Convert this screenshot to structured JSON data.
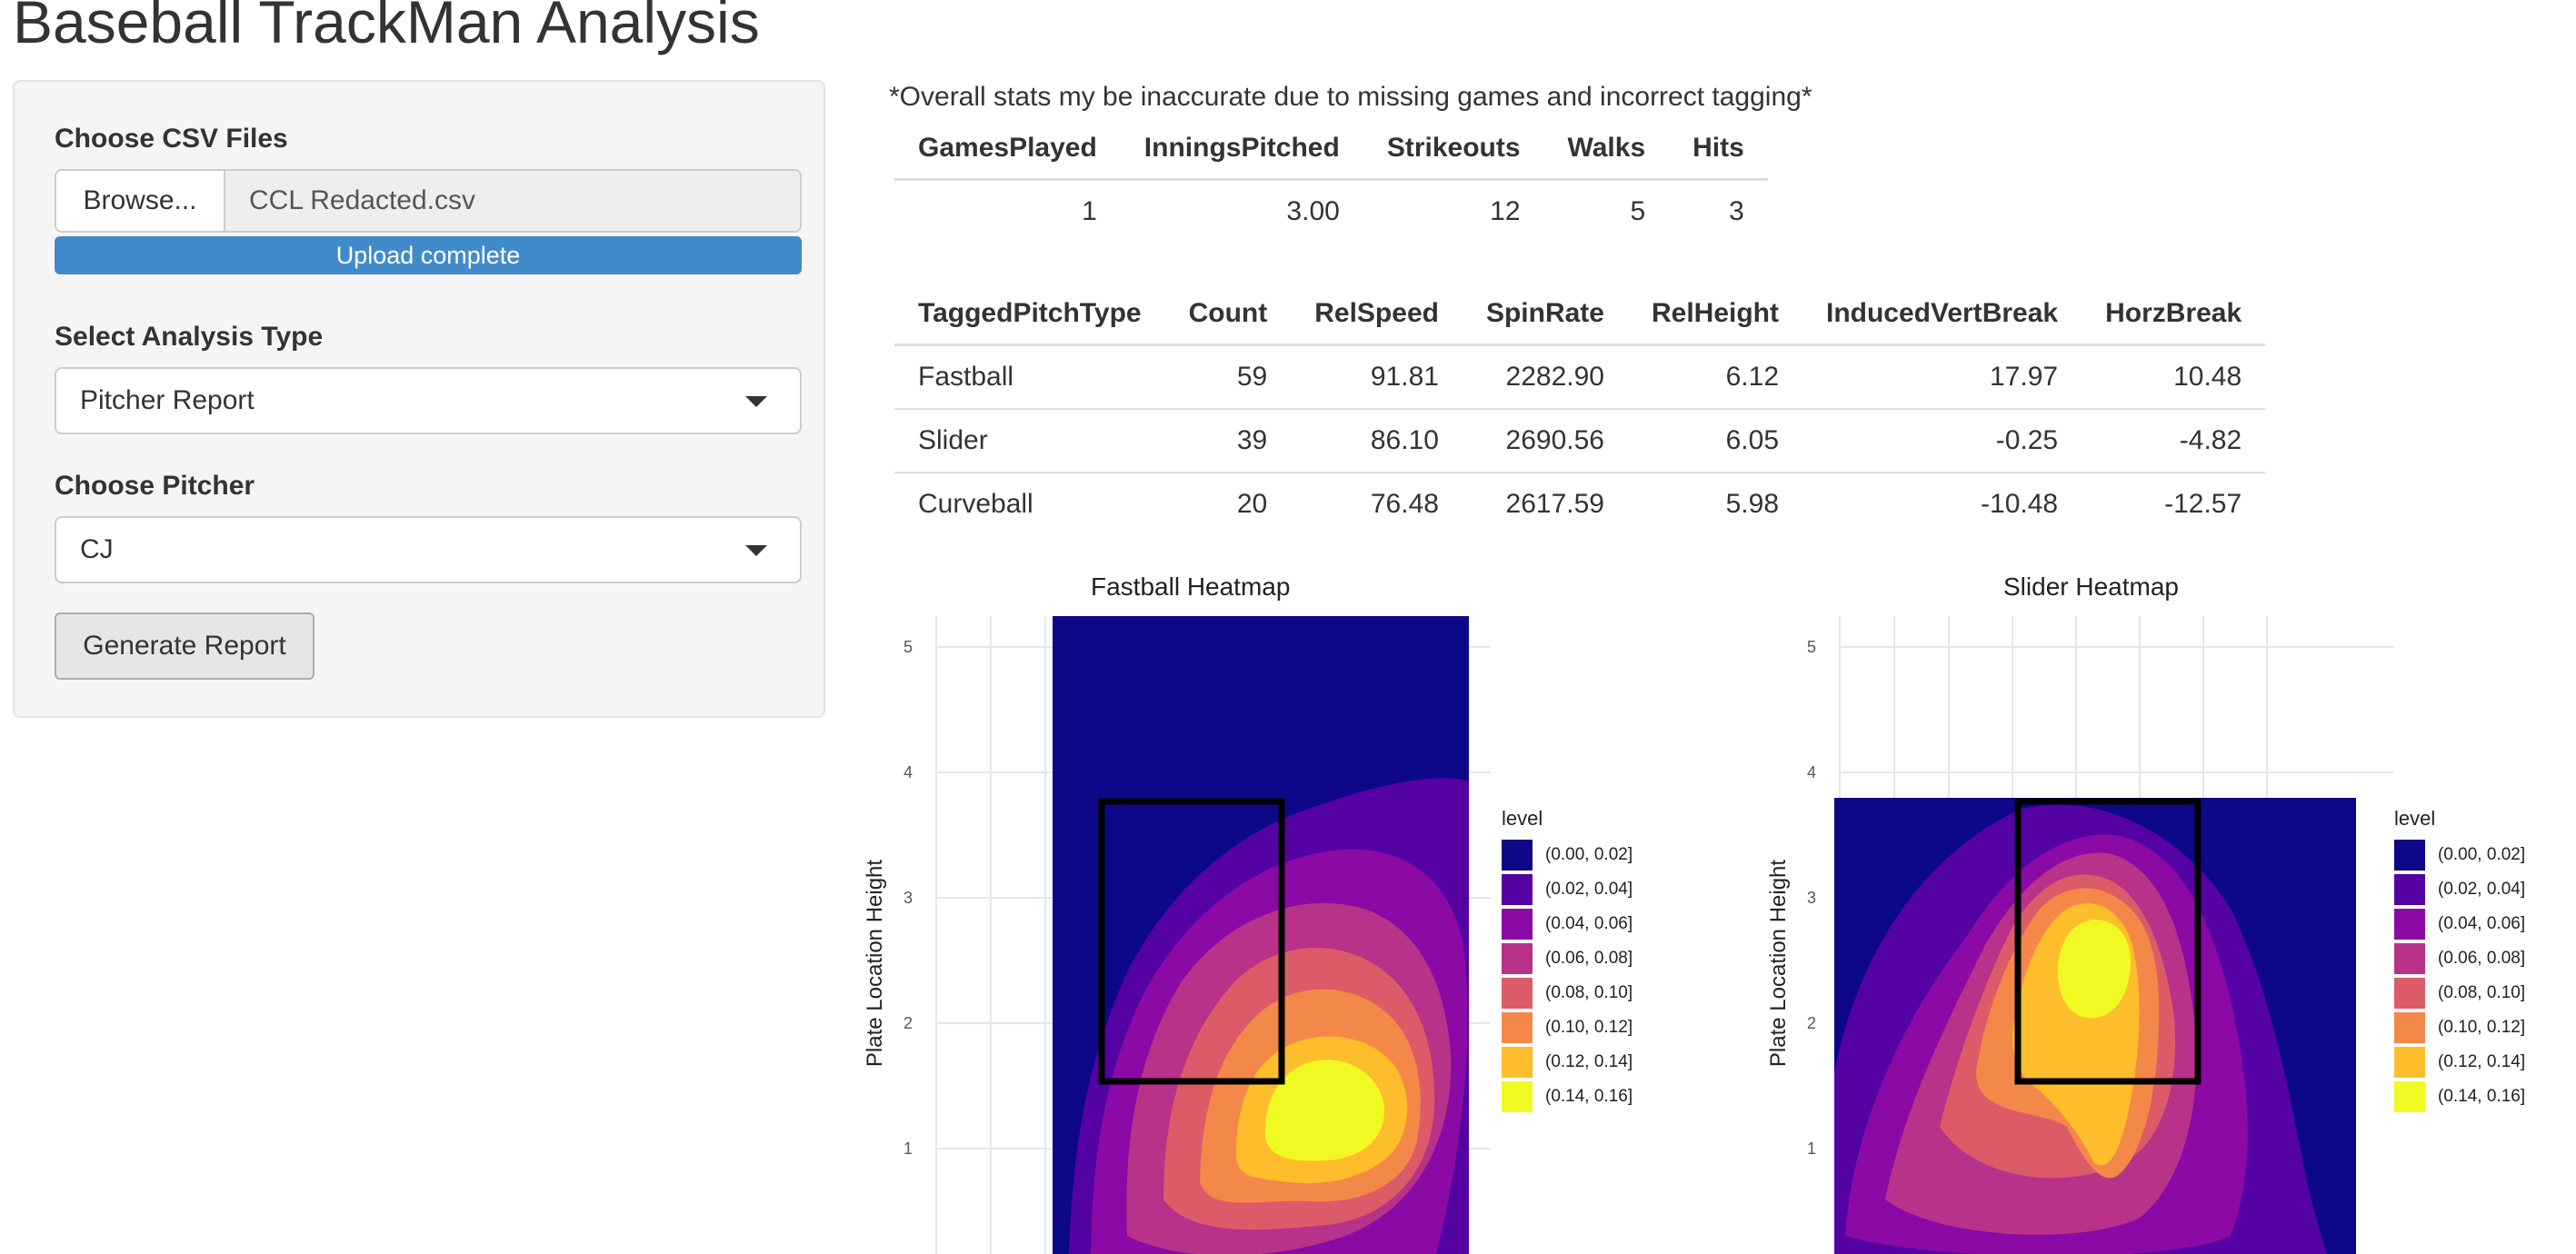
{
  "app": {
    "title": "Baseball TrackMan Analysis"
  },
  "sidebar": {
    "file_label": "Choose CSV Files",
    "browse_label": "Browse...",
    "file_name": "CCL Redacted.csv",
    "upload_status": "Upload complete",
    "analysis_label": "Select Analysis Type",
    "analysis_value": "Pitcher Report",
    "pitcher_label": "Choose Pitcher",
    "pitcher_value": "CJ",
    "generate_label": "Generate Report"
  },
  "main": {
    "note": "*Overall stats my be inaccurate due to missing games and incorrect tagging*",
    "overall": {
      "headers": [
        "GamesPlayed",
        "InningsPitched",
        "Strikeouts",
        "Walks",
        "Hits"
      ],
      "rows": [
        [
          "1",
          "3.00",
          "12",
          "5",
          "3"
        ]
      ]
    },
    "pitches": {
      "headers": [
        "TaggedPitchType",
        "Count",
        "RelSpeed",
        "SpinRate",
        "RelHeight",
        "InducedVertBreak",
        "HorzBreak"
      ],
      "rows": [
        [
          "Fastball",
          "59",
          "91.81",
          "2282.90",
          "6.12",
          "17.97",
          "10.48"
        ],
        [
          "Slider",
          "39",
          "86.10",
          "2690.56",
          "6.05",
          "-0.25",
          "-4.82"
        ],
        [
          "Curveball",
          "20",
          "76.48",
          "2617.59",
          "5.98",
          "-10.48",
          "-12.57"
        ]
      ]
    }
  },
  "heatmaps": [
    {
      "title": "Fastball Heatmap",
      "ylabel": "Plate Location Height",
      "yticks": [
        "5",
        "4",
        "3",
        "2",
        "1"
      ],
      "legend_title": "level"
    },
    {
      "title": "Slider Heatmap",
      "ylabel": "Plate Location Height",
      "yticks": [
        "5",
        "4",
        "3",
        "2",
        "1"
      ],
      "legend_title": "level"
    }
  ],
  "legend_levels": [
    {
      "label": "(0.00, 0.02]",
      "color": "#0d0887"
    },
    {
      "label": "(0.02, 0.04]",
      "color": "#5402a3"
    },
    {
      "label": "(0.04, 0.06]",
      "color": "#8b0aa5"
    },
    {
      "label": "(0.06, 0.08]",
      "color": "#b83289"
    },
    {
      "label": "(0.08, 0.10]",
      "color": "#db5c68"
    },
    {
      "label": "(0.10, 0.12]",
      "color": "#f48849"
    },
    {
      "label": "(0.12, 0.14]",
      "color": "#febd2a"
    },
    {
      "label": "(0.14, 0.16]",
      "color": "#f0f921"
    }
  ]
}
